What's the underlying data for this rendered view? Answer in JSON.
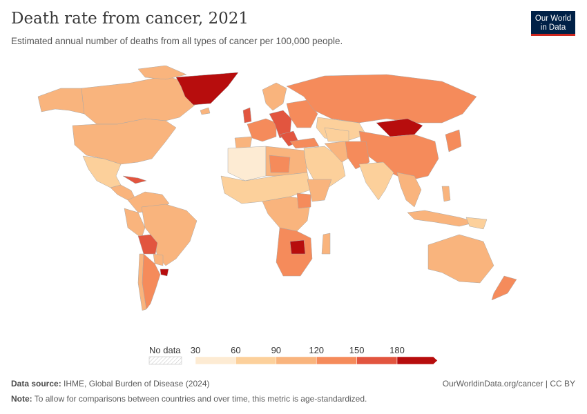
{
  "header": {
    "title": "Death rate from cancer, 2021",
    "subtitle": "Estimated annual number of deaths from all types of cancer per 100,000 people."
  },
  "logo": {
    "line1": "Our World",
    "line2": "in Data",
    "bg": "#002147",
    "accent": "#ce261e"
  },
  "legend": {
    "no_data_label": "No data",
    "ticks": [
      "30",
      "60",
      "90",
      "120",
      "150",
      "180"
    ],
    "colors": [
      "#fdebd3",
      "#fcd09b",
      "#f9b47d",
      "#f58b5b",
      "#e2553f",
      "#b70d0d"
    ]
  },
  "colors": {
    "ocean": "#ffffff",
    "borders": "#a8a8a8",
    "no_data": "#eeeeee"
  },
  "footer": {
    "source_label": "Data source:",
    "source_text": "IHME, Global Burden of Disease (2024)",
    "note_label": "Note:",
    "note_text": "To allow for comparisons between countries and over time, this metric is age-standardized.",
    "url": "OurWorldinData.org/cancer | CC BY"
  }
}
